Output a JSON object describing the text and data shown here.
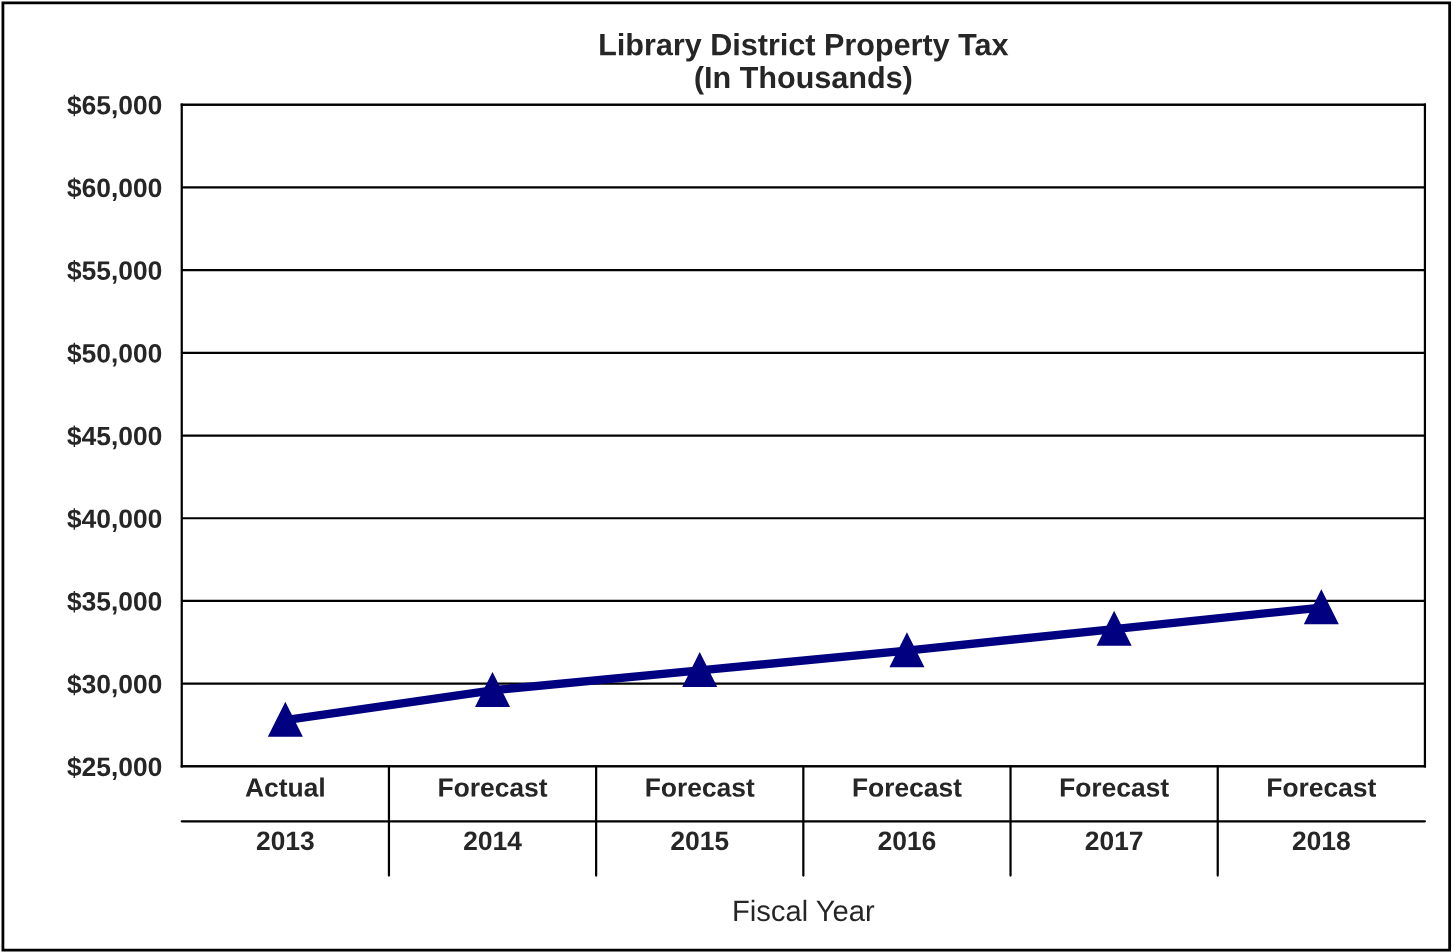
{
  "chart_data": {
    "type": "line",
    "title": "Library District Property Tax\n(In Thousands)",
    "xlabel": "Fiscal Year",
    "categories": [
      "Actual\n2013",
      "Forecast\n2014",
      "Forecast\n2015",
      "Forecast\n2016",
      "Forecast\n2017",
      "Forecast\n2018"
    ],
    "series": [
      {
        "color": "#000080",
        "values": [
          27800,
          29600,
          30800,
          32000,
          33300,
          34600
        ]
      }
    ],
    "ylim": [
      25000,
      65000
    ],
    "yticks": [
      {
        "value": 25000,
        "label": "$25,000"
      },
      {
        "value": 30000,
        "label": "$30,000"
      },
      {
        "value": 35000,
        "label": "$35,000"
      },
      {
        "value": 40000,
        "label": "$40,000"
      },
      {
        "value": 45000,
        "label": "$45,000"
      },
      {
        "value": 50000,
        "label": "$50,000"
      },
      {
        "value": 55000,
        "label": "$55,000"
      },
      {
        "value": 60000,
        "label": "$60,000"
      },
      {
        "value": 65000,
        "label": "$65,000"
      }
    ],
    "grid": "y",
    "legend": false,
    "marker": "triangle",
    "line_style": "solid"
  }
}
